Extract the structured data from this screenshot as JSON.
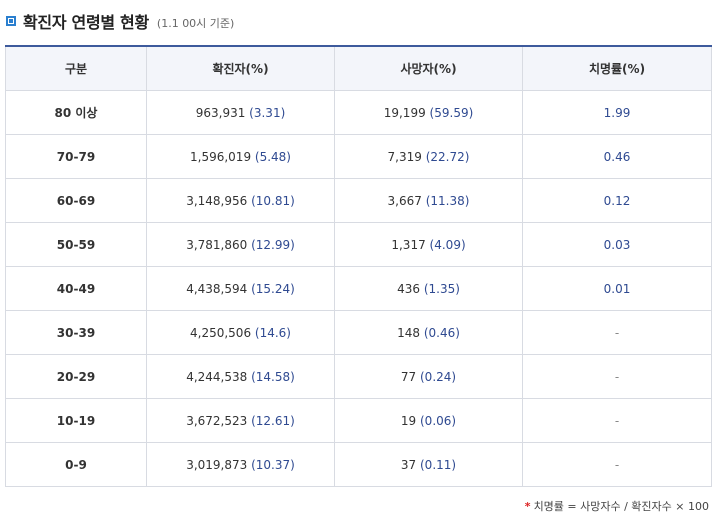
{
  "header": {
    "icon": "square-bullet-icon",
    "title": "확진자 연령별 현황",
    "subtitle": "(1.1 00시 기준)"
  },
  "table": {
    "columns": [
      "구분",
      "확진자(%)",
      "사망자(%)",
      "치명률(%)"
    ],
    "rows": [
      {
        "age": "80 이상",
        "cases": "963,931",
        "cases_pct": "(3.31)",
        "deaths": "19,199",
        "deaths_pct": "(59.59)",
        "rate": "1.99"
      },
      {
        "age": "70-79",
        "cases": "1,596,019",
        "cases_pct": "(5.48)",
        "deaths": "7,319",
        "deaths_pct": "(22.72)",
        "rate": "0.46"
      },
      {
        "age": "60-69",
        "cases": "3,148,956",
        "cases_pct": "(10.81)",
        "deaths": "3,667",
        "deaths_pct": "(11.38)",
        "rate": "0.12"
      },
      {
        "age": "50-59",
        "cases": "3,781,860",
        "cases_pct": "(12.99)",
        "deaths": "1,317",
        "deaths_pct": "(4.09)",
        "rate": "0.03"
      },
      {
        "age": "40-49",
        "cases": "4,438,594",
        "cases_pct": "(15.24)",
        "deaths": "436",
        "deaths_pct": "(1.35)",
        "rate": "0.01"
      },
      {
        "age": "30-39",
        "cases": "4,250,506",
        "cases_pct": "(14.6)",
        "deaths": "148",
        "deaths_pct": "(0.46)",
        "rate": "-"
      },
      {
        "age": "20-29",
        "cases": "4,244,538",
        "cases_pct": "(14.58)",
        "deaths": "77",
        "deaths_pct": "(0.24)",
        "rate": "-"
      },
      {
        "age": "10-19",
        "cases": "3,672,523",
        "cases_pct": "(12.61)",
        "deaths": "19",
        "deaths_pct": "(0.06)",
        "rate": "-"
      },
      {
        "age": "0-9",
        "cases": "3,019,873",
        "cases_pct": "(10.37)",
        "deaths": "37",
        "deaths_pct": "(0.11)",
        "rate": "-"
      }
    ]
  },
  "footnote": {
    "marker": "*",
    "text": "치명률 = 사망자수 / 확진자수 × 100"
  },
  "colors": {
    "accent": "#2a7fcf",
    "header_border": "#3d5a9c",
    "value_blue": "#2f4a91"
  }
}
